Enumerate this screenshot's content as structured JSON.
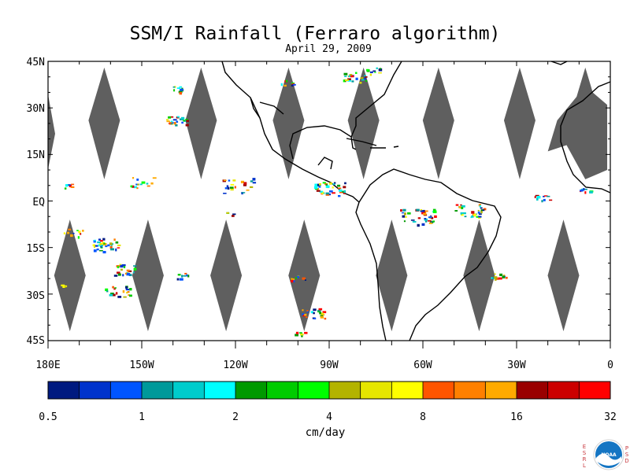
{
  "title": "SSM/I Rainfall (Ferraro algorithm)",
  "subtitle": "April 29, 2009",
  "map": {
    "lat_labels": [
      "45N",
      "30N",
      "15N",
      "EQ",
      "15S",
      "30S",
      "45S"
    ],
    "lon_labels": [
      "180E",
      "150W",
      "120W",
      "90W",
      "60W",
      "30W",
      "0"
    ],
    "land_color": "#ffffff",
    "coastline_color": "#000000",
    "no_data_swath_color": "#5f5f5f",
    "swath_gaps": {
      "northern_hemisphere_center_lons": [
        -162,
        -131,
        -103,
        -79,
        -55,
        -29,
        -8
      ],
      "southern_hemisphere_center_lons": [
        -173,
        -148,
        -123,
        -98,
        -70,
        -42,
        -15
      ]
    }
  },
  "colorbar": {
    "tick_labels": [
      "0.5",
      "1",
      "2",
      "4",
      "8",
      "16",
      "32"
    ],
    "units": "cm/day",
    "colors": [
      "#001a80",
      "#0033cc",
      "#0055ff",
      "#00999a",
      "#00cccc",
      "#00ffff",
      "#009900",
      "#00cc00",
      "#00ff00",
      "#b3b300",
      "#e6e600",
      "#ffff00",
      "#ff5500",
      "#ff8000",
      "#ffaa00",
      "#990000",
      "#cc0000",
      "#ff0000"
    ]
  },
  "logo": {
    "left_letters": [
      "E",
      "S",
      "R",
      "L"
    ],
    "right_letters": [
      "P",
      "S",
      "D"
    ],
    "center_text": "NOAA",
    "circle_color": "#1475c3"
  }
}
